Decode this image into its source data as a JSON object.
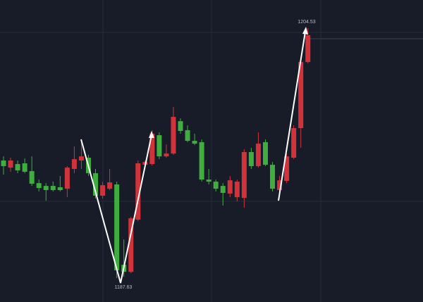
{
  "chart_data": {
    "type": "candlestick",
    "up_color": "#d0343a",
    "down_color": "#3fae3f",
    "open": [
      1195.58,
      1195.1,
      1195.34,
      1195.39,
      1194.86,
      1194.05,
      1193.86,
      1193.86,
      1193.77,
      1193.67,
      1195.01,
      1195.58,
      1195.77,
      1194.72,
      1193.2,
      1193.67,
      1193.96,
      1188.53,
      1188.05,
      1191.58,
      1195.29,
      1195.34,
      1197.29,
      1195.86,
      1196.05,
      1198.24,
      1197.63,
      1196.91,
      1196.82,
      1194.29,
      1194.15,
      1193.86,
      1193.34,
      1193.1,
      1193.05,
      1196.15,
      1195.2,
      1196.82,
      1195.29,
      1193.58,
      1194.2,
      1195.77,
      1197.77,
      1202.24
    ],
    "high": [
      1195.86,
      1195.77,
      1195.58,
      1195.72,
      1195.86,
      1194.29,
      1194.05,
      1194.15,
      1194.53,
      1195.2,
      1196.53,
      1196.91,
      1195.96,
      1195.01,
      1194.15,
      1195.01,
      1194.15,
      1190.24,
      1191.77,
      1195.58,
      1195.58,
      1197.63,
      1197.48,
      1196.67,
      1199.2,
      1198.43,
      1197.96,
      1197.39,
      1197.01,
      1195.01,
      1194.29,
      1194.05,
      1194.53,
      1194.29,
      1196.34,
      1196.44,
      1197.48,
      1197.01,
      1195.48,
      1194.53,
      1196.05,
      1197.96,
      1202.63,
      1204.53
    ],
    "low": [
      1194.63,
      1194.82,
      1194.72,
      1194.72,
      1193.86,
      1193.48,
      1192.86,
      1193.48,
      1193.48,
      1193.1,
      1194.72,
      1195.01,
      1194.53,
      1193.01,
      1193.01,
      1193.58,
      1187.63,
      1187.72,
      1187.96,
      1191.48,
      1195.01,
      1195.24,
      1195.67,
      1195.77,
      1195.96,
      1197.39,
      1196.82,
      1196.63,
      1194.15,
      1193.96,
      1193.48,
      1192.53,
      1193.1,
      1192.82,
      1192.39,
      1195.01,
      1195.1,
      1195.2,
      1193.48,
      1193.39,
      1194.05,
      1195.67,
      1196.44,
      1202.15
    ],
    "close": [
      1195.2,
      1195.58,
      1194.91,
      1194.82,
      1194.01,
      1193.72,
      1193.58,
      1193.58,
      1193.58,
      1195.1,
      1195.67,
      1195.86,
      1194.72,
      1193.2,
      1193.91,
      1194.1,
      1188.15,
      1188.05,
      1191.67,
      1195.39,
      1195.48,
      1197.39,
      1195.86,
      1196.05,
      1198.53,
      1197.58,
      1196.91,
      1196.72,
      1194.29,
      1194.15,
      1193.67,
      1193.39,
      1194.24,
      1194.15,
      1196.15,
      1195.2,
      1196.72,
      1195.29,
      1193.67,
      1194.24,
      1195.86,
      1197.77,
      1202.24,
      1204.05
    ]
  }
}
